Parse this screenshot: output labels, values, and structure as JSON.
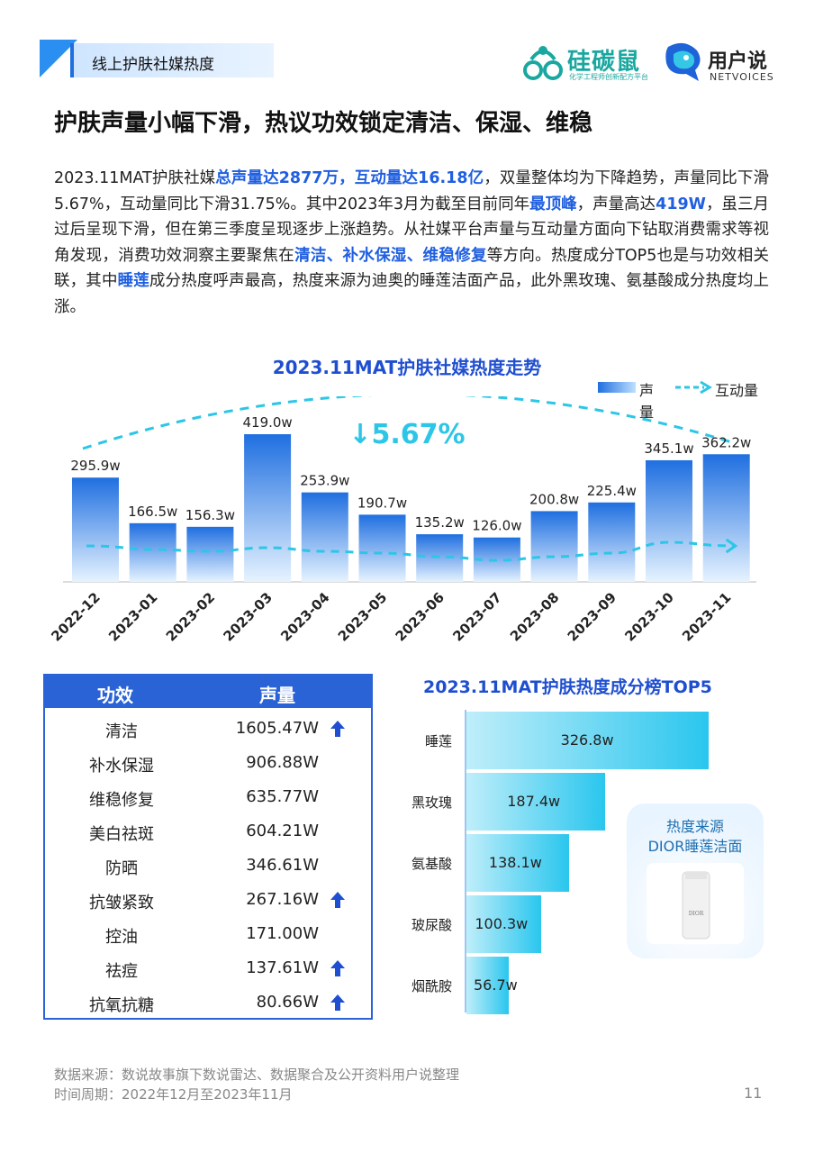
{
  "header": {
    "section_tab": "线上护肤社媒热度",
    "logo1_name": "硅碳鼠",
    "logo1_sub": "化学工程师创新配方平台",
    "logo2_name": "用户说",
    "logo2_sub": "NETVOICES"
  },
  "title": "护肤声量小幅下滑，热议功效锁定清洁、保湿、维稳",
  "paragraph": [
    {
      "t": "2023.11MAT护肤社媒",
      "hl": false
    },
    {
      "t": "总声量达2877万，互动量达16.18亿",
      "hl": true
    },
    {
      "t": "，双量整体均为下降趋势，声量同比下滑5.67%，互动量同比下滑31.75%。其中2023年3月为截至目前同年",
      "hl": false
    },
    {
      "t": "最顶峰",
      "hl": true
    },
    {
      "t": "，声量高达",
      "hl": false
    },
    {
      "t": "419W",
      "hl": true
    },
    {
      "t": "，虽三月过后呈现下滑，但在第三季度呈现逐步上涨趋势。从社媒平台声量与互动量方面向下钻取消费需求等视角发现，消费功效洞察主要聚焦在",
      "hl": false
    },
    {
      "t": "清洁、补水保湿、维稳修复",
      "hl": true
    },
    {
      "t": "等方向。热度成分TOP5也是与功效相关联，其中",
      "hl": false
    },
    {
      "t": "睡莲",
      "hl": true
    },
    {
      "t": "成分热度呼声最高，热度来源为迪奥的睡莲洁面产品，此外黑玫瑰、氨基酸成分热度均上涨。",
      "hl": false
    }
  ],
  "chart_data": [
    {
      "type": "bar",
      "title": "2023.11MAT护肤社媒热度走势",
      "categories": [
        "2022-12",
        "2023-01",
        "2023-02",
        "2023-03",
        "2023-04",
        "2023-05",
        "2023-06",
        "2023-07",
        "2023-08",
        "2023-09",
        "2023-10",
        "2023-11"
      ],
      "series": [
        {
          "name": "声量",
          "values": [
            295.9,
            166.5,
            156.3,
            419.0,
            253.9,
            190.7,
            135.2,
            126.0,
            200.8,
            225.4,
            345.1,
            362.2
          ],
          "labels": [
            "295.9w",
            "166.5w",
            "156.3w",
            "419.0w",
            "253.9w",
            "190.7w",
            "135.2w",
            "126.0w",
            "200.8w",
            "225.4w",
            "345.1w",
            "362.2w"
          ]
        },
        {
          "name": "互动量",
          "type": "line",
          "style": "dashed-arrow"
        }
      ],
      "annotation": "↓5.67%",
      "legend": "top-right",
      "ylim": [
        0,
        460
      ],
      "colors": {
        "bar": "#1f6fe0",
        "line": "#2cc6e6",
        "annotation": "#2cc6e6"
      }
    },
    {
      "type": "bar",
      "orientation": "horizontal",
      "title": "2023.11MAT护肤热度成分榜TOP5",
      "categories": [
        "睡莲",
        "黑玫瑰",
        "氨基酸",
        "玻尿酸",
        "烟酰胺"
      ],
      "values": [
        326.8,
        187.4,
        138.1,
        100.3,
        56.7
      ],
      "labels": [
        "326.8w",
        "187.4w",
        "138.1w",
        "100.3w",
        "56.7w"
      ],
      "xlim": [
        0,
        330
      ],
      "colors": {
        "bar": "#2ac6ee"
      }
    }
  ],
  "efficacy_table": {
    "headers": [
      "功效",
      "声量"
    ],
    "rows": [
      {
        "name": "清洁",
        "value": "1605.47W",
        "up": true
      },
      {
        "name": "补水保湿",
        "value": "906.88W",
        "up": false
      },
      {
        "name": "维稳修复",
        "value": "635.77W",
        "up": false
      },
      {
        "name": "美白祛斑",
        "value": "604.21W",
        "up": false
      },
      {
        "name": "防晒",
        "value": "346.61W",
        "up": false
      },
      {
        "name": "抗皱紧致",
        "value": "267.16W",
        "up": true
      },
      {
        "name": "控油",
        "value": "171.00W",
        "up": false
      },
      {
        "name": "祛痘",
        "value": "137.61W",
        "up": true
      },
      {
        "name": "抗氧抗糖",
        "value": "80.66W",
        "up": true
      }
    ]
  },
  "source_card": {
    "line1": "热度来源",
    "line2": "DIOR睡莲洁面",
    "product_brand": "DIOR"
  },
  "footer": {
    "source": "数据来源：数说故事旗下数说雷达、数据聚合及公开资料用户说整理",
    "period": "时间周期：2022年12月至2023年11月",
    "page": "11"
  }
}
